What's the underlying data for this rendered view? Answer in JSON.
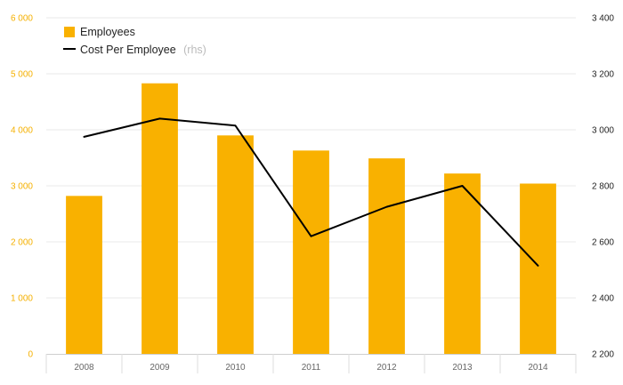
{
  "colors": {
    "bar": "#f9b100",
    "line": "#000000",
    "left_axis_text": "#f5b000",
    "right_axis_text": "#222222",
    "grid": "#e8e8e8"
  },
  "chart_data": {
    "type": "bar",
    "categories": [
      "2008",
      "2009",
      "2010",
      "2011",
      "2012",
      "2013",
      "2014"
    ],
    "series": [
      {
        "name": "Employees",
        "type": "bar",
        "axis": "left",
        "values": [
          2820,
          4830,
          3900,
          3630,
          3490,
          3220,
          3040
        ]
      },
      {
        "name": "Cost Per Employee",
        "name_note": "(rhs)",
        "type": "line",
        "axis": "right",
        "values": [
          2975,
          3040,
          3015,
          2620,
          2725,
          2800,
          2515
        ]
      }
    ],
    "y_left": {
      "ylim": [
        0,
        6000
      ],
      "ticks": [
        0,
        1000,
        2000,
        3000,
        4000,
        5000,
        6000
      ],
      "tick_labels": [
        "0",
        "1 000",
        "2 000",
        "3 000",
        "4 000",
        "5 000",
        "6 000"
      ]
    },
    "y_right": {
      "ylim": [
        2200,
        3400
      ],
      "ticks": [
        2200,
        2400,
        2600,
        2800,
        3000,
        3200,
        3400
      ],
      "tick_labels": [
        "2 200",
        "2 400",
        "2 600",
        "2 800",
        "3 000",
        "3 200",
        "3 400"
      ]
    },
    "grid": true,
    "legend_position": "top-left"
  }
}
